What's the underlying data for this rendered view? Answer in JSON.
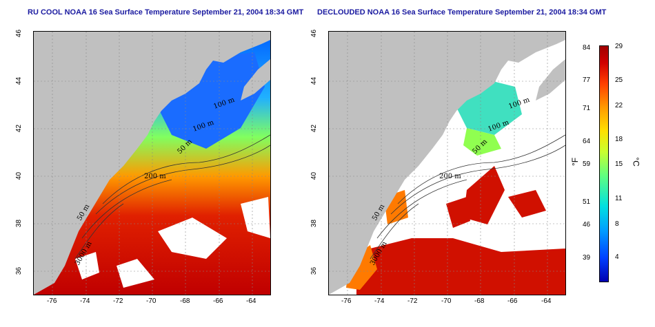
{
  "left_panel": {
    "title": "RU COOL NOAA 16 Sea Surface Temperature September 21, 2004 18:34 GMT",
    "contours": [
      "100 m",
      "50 m",
      "200 m",
      "50 m",
      "3000 m"
    ]
  },
  "right_panel": {
    "title": "DECLOUDED NOAA 16 Sea Surface Temperature September 21, 2004 18:34 GMT",
    "contours": [
      "100 m",
      "100 m",
      "50 m",
      "200 m",
      "50 m",
      "3000 m"
    ]
  },
  "x_ticks": [
    "-76",
    "-74",
    "-72",
    "-70",
    "-68",
    "-66",
    "-64"
  ],
  "y_ticks": [
    "36",
    "38",
    "40",
    "42",
    "44",
    "46"
  ],
  "colorbar": {
    "fahrenheit_ticks": [
      "84",
      "77",
      "71",
      "64",
      "59",
      "51",
      "46",
      "39"
    ],
    "celsius_ticks": [
      "29",
      "25",
      "22",
      "18",
      "15",
      "11",
      "8",
      "4"
    ],
    "fahrenheit_unit": "°F",
    "celsius_unit": "°C",
    "range_celsius": [
      0,
      29
    ]
  },
  "colors": {
    "title": "#1a1aa0",
    "land": "#c0c0c0",
    "warm": "#d00000",
    "cool": "#0040ff"
  }
}
